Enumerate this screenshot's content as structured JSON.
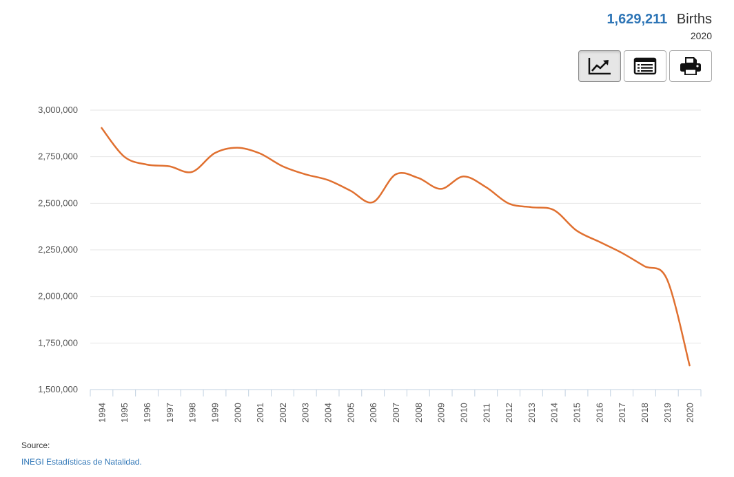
{
  "stat": {
    "value": "1,629,211",
    "unit": "Births",
    "year": "2020"
  },
  "toolbar": {
    "buttons": [
      {
        "name": "chart-view-button",
        "icon": "line-chart-icon",
        "active": true
      },
      {
        "name": "table-view-button",
        "icon": "table-list-icon",
        "active": false
      },
      {
        "name": "print-button",
        "icon": "printer-icon",
        "active": false
      }
    ]
  },
  "source": {
    "label": "Source:",
    "link_text": "INEGI Estadísticas de Natalidad."
  },
  "colors": {
    "accent": "#2e75b6",
    "line": "#e07030",
    "grid": "#e6e6e6"
  },
  "chart_data": {
    "type": "line",
    "title": "",
    "xlabel": "",
    "ylabel": "",
    "categories": [
      "1994",
      "1995",
      "1996",
      "1997",
      "1998",
      "1999",
      "2000",
      "2001",
      "2002",
      "2003",
      "2004",
      "2005",
      "2006",
      "2007",
      "2008",
      "2009",
      "2010",
      "2011",
      "2012",
      "2013",
      "2014",
      "2015",
      "2016",
      "2017",
      "2018",
      "2019",
      "2020"
    ],
    "series": [
      {
        "values": [
          2904389,
          2750444,
          2707718,
          2698425,
          2668428,
          2769089,
          2798339,
          2767610,
          2699084,
          2655894,
          2625056,
          2567906,
          2505939,
          2655083,
          2636110,
          2577214,
          2643908,
          2586287,
          2498880,
          2478889,
          2463420,
          2353596,
          2293708,
          2234039,
          2162535,
          2092214,
          1629211
        ]
      }
    ],
    "ylim": [
      1500000,
      3000000
    ],
    "yticks": [
      1500000,
      1750000,
      2000000,
      2250000,
      2500000,
      2750000,
      3000000
    ],
    "ytick_labels": [
      "1,500,000",
      "1,750,000",
      "2,000,000",
      "2,250,000",
      "2,500,000",
      "2,750,000",
      "3,000,000"
    ],
    "grid": true,
    "legend": "none"
  }
}
